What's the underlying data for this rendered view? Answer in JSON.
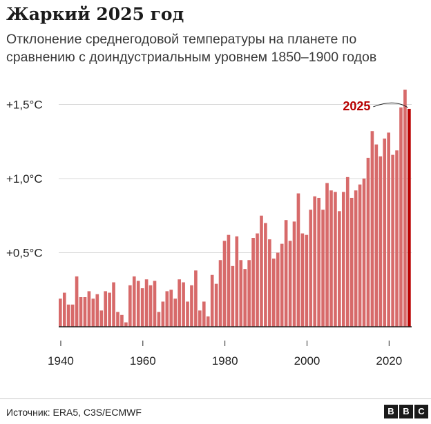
{
  "title": "Жаркий 2025 год",
  "subtitle": "Отклонение среднегодовой температуры на планете по сравнению с доиндустриальным уровнем 1850–1900 годов",
  "source": "Источник: ERA5, C3S/ECMWF",
  "logo": [
    "B",
    "B",
    "C"
  ],
  "colors": {
    "bar": "#d76a6a",
    "highlight": "#b80000",
    "grid": "#d9d9d9",
    "axis": "#222222"
  },
  "chart_data": {
    "type": "bar",
    "title": "Жаркий 2025 год",
    "xlabel": "",
    "ylabel": "",
    "ylim": [
      0,
      1.6
    ],
    "xlim": [
      1940,
      2025
    ],
    "grid": true,
    "y_ticks": [
      0.5,
      1.0,
      1.5
    ],
    "y_tick_labels": [
      "+0,5°C",
      "+1,0°C",
      "+1,5°C"
    ],
    "x_ticks": [
      1940,
      1960,
      1980,
      2000,
      2020
    ],
    "x_tick_labels": [
      "1940",
      "1960",
      "1980",
      "2000",
      "2020"
    ],
    "annotation": {
      "label": "2025",
      "year": 2025
    },
    "highlight_year": 2025,
    "x": [
      1940,
      1941,
      1942,
      1943,
      1944,
      1945,
      1946,
      1947,
      1948,
      1949,
      1950,
      1951,
      1952,
      1953,
      1954,
      1955,
      1956,
      1957,
      1958,
      1959,
      1960,
      1961,
      1962,
      1963,
      1964,
      1965,
      1966,
      1967,
      1968,
      1969,
      1970,
      1971,
      1972,
      1973,
      1974,
      1975,
      1976,
      1977,
      1978,
      1979,
      1980,
      1981,
      1982,
      1983,
      1984,
      1985,
      1986,
      1987,
      1988,
      1989,
      1990,
      1991,
      1992,
      1993,
      1994,
      1995,
      1996,
      1997,
      1998,
      1999,
      2000,
      2001,
      2002,
      2003,
      2004,
      2005,
      2006,
      2007,
      2008,
      2009,
      2010,
      2011,
      2012,
      2013,
      2014,
      2015,
      2016,
      2017,
      2018,
      2019,
      2020,
      2021,
      2022,
      2023,
      2024,
      2025
    ],
    "values": [
      0.19,
      0.23,
      0.15,
      0.15,
      0.34,
      0.2,
      0.2,
      0.24,
      0.19,
      0.22,
      0.11,
      0.24,
      0.23,
      0.3,
      0.1,
      0.08,
      0.03,
      0.28,
      0.34,
      0.31,
      0.26,
      0.32,
      0.28,
      0.31,
      0.1,
      0.17,
      0.24,
      0.25,
      0.19,
      0.32,
      0.3,
      0.17,
      0.28,
      0.38,
      0.11,
      0.17,
      0.07,
      0.35,
      0.29,
      0.45,
      0.58,
      0.62,
      0.41,
      0.61,
      0.45,
      0.39,
      0.45,
      0.6,
      0.63,
      0.75,
      0.7,
      0.59,
      0.46,
      0.5,
      0.56,
      0.72,
      0.58,
      0.71,
      0.9,
      0.63,
      0.62,
      0.79,
      0.88,
      0.87,
      0.79,
      0.97,
      0.92,
      0.91,
      0.78,
      0.91,
      1.01,
      0.87,
      0.92,
      0.96,
      1.0,
      1.14,
      1.32,
      1.23,
      1.15,
      1.27,
      1.31,
      1.16,
      1.19,
      1.48,
      1.6,
      1.47
    ]
  }
}
